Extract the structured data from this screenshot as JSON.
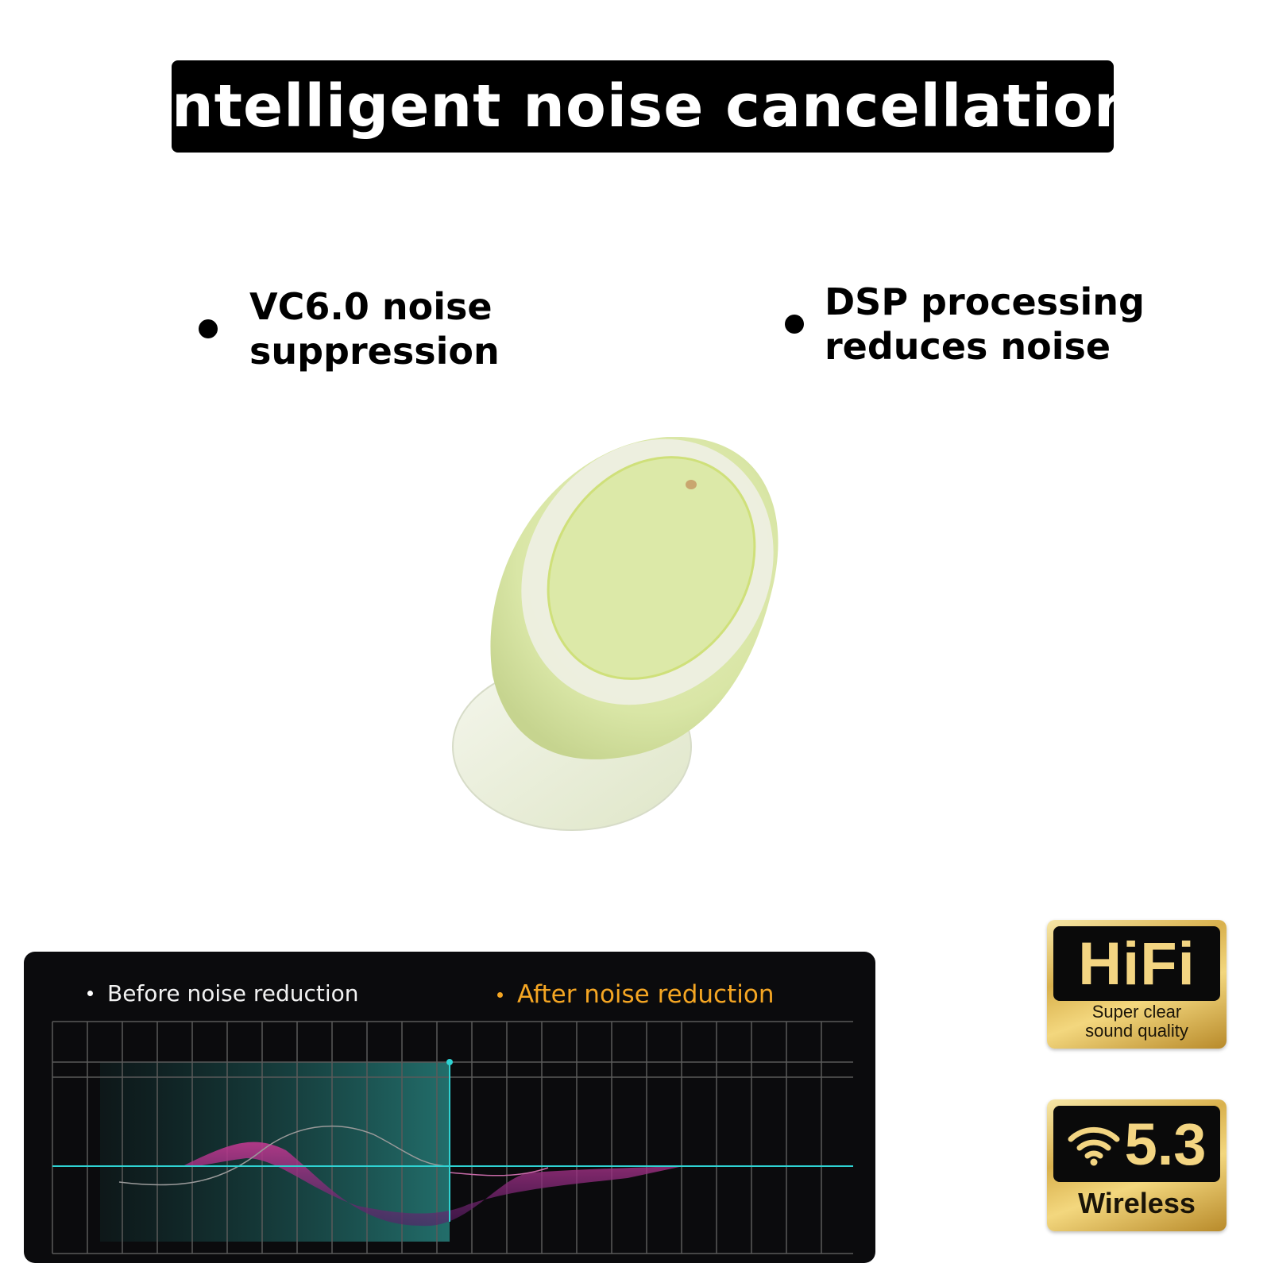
{
  "title": "Intelligent noise cancellation",
  "features": [
    {
      "lines": [
        "VC6.0 noise",
        "suppression"
      ]
    },
    {
      "lines": [
        "DSP processing",
        "reduces noise"
      ]
    }
  ],
  "product": {
    "color": "#dfeab0"
  },
  "chart": {
    "legend_before": "Before noise reduction",
    "legend_after": "After noise reduction",
    "colors": {
      "before": "#ffffff",
      "after": "#f5a623",
      "baseline": "#2fd3d3",
      "wave": "#c0398f"
    }
  },
  "badges": {
    "hifi": {
      "title": "HiFi",
      "caption_line1": "Super clear",
      "caption_line2": "sound quality"
    },
    "bluetooth": {
      "version": "5.3",
      "label": "Wireless",
      "icon": "wifi-icon"
    }
  }
}
